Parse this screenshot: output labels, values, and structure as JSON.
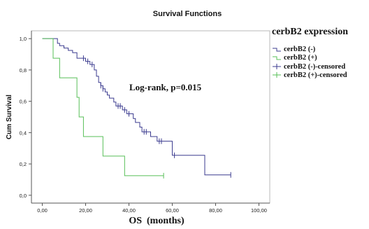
{
  "chart_data": {
    "type": "line",
    "step": true,
    "title": "Survival Functions",
    "xlabel": "OS  (months)",
    "ylabel": "Cum Survival",
    "xlim": [
      -5,
      105
    ],
    "ylim": [
      -0.05,
      1.05
    ],
    "x_ticks": [
      0,
      20,
      40,
      60,
      80,
      100
    ],
    "x_tick_labels": [
      "0,00",
      "20,00",
      "40,00",
      "60,00",
      "80,00",
      "100,00"
    ],
    "y_ticks": [
      0,
      0.2,
      0.4,
      0.6,
      0.8,
      1.0
    ],
    "y_tick_labels": [
      "0,0",
      "0,2",
      "0,4",
      "0,6",
      "0,8",
      "1,0"
    ],
    "grid": false,
    "legend_title": "cerbB2 expression",
    "legend_position": "right",
    "annotation": "Log-rank, p=0.015",
    "series": [
      {
        "name": "cerbB2 (-)",
        "censored_name": "cerbB2 (-)-censored",
        "color": "#3b3b8f",
        "steps": [
          [
            0,
            1.0
          ],
          [
            7,
            0.97
          ],
          [
            8,
            0.955
          ],
          [
            10,
            0.94
          ],
          [
            12,
            0.925
          ],
          [
            14,
            0.91
          ],
          [
            16,
            0.875
          ],
          [
            20,
            0.855
          ],
          [
            22,
            0.835
          ],
          [
            24,
            0.8
          ],
          [
            25,
            0.76
          ],
          [
            26,
            0.72
          ],
          [
            27,
            0.7
          ],
          [
            28,
            0.68
          ],
          [
            29,
            0.66
          ],
          [
            30,
            0.64
          ],
          [
            31,
            0.62
          ],
          [
            33,
            0.595
          ],
          [
            34,
            0.57
          ],
          [
            37,
            0.545
          ],
          [
            39,
            0.52
          ],
          [
            42,
            0.49
          ],
          [
            43,
            0.465
          ],
          [
            45,
            0.435
          ],
          [
            46,
            0.405
          ],
          [
            50,
            0.375
          ],
          [
            53,
            0.345
          ],
          [
            60,
            0.255
          ],
          [
            75,
            0.13
          ]
        ],
        "end_x": 87,
        "censored": [
          [
            19,
            0.875
          ],
          [
            21,
            0.855
          ],
          [
            23,
            0.835
          ],
          [
            27,
            0.7
          ],
          [
            28,
            0.68
          ],
          [
            35,
            0.57
          ],
          [
            36,
            0.57
          ],
          [
            38,
            0.545
          ],
          [
            40,
            0.52
          ],
          [
            47,
            0.405
          ],
          [
            48,
            0.405
          ],
          [
            54,
            0.345
          ],
          [
            55,
            0.345
          ],
          [
            61,
            0.255
          ],
          [
            87,
            0.13
          ]
        ]
      },
      {
        "name": "cerbB2 (+)",
        "censored_name": "cerbB2 (+)-censored",
        "color": "#57bf57",
        "steps": [
          [
            0,
            1.0
          ],
          [
            5,
            0.875
          ],
          [
            8,
            0.75
          ],
          [
            16,
            0.625
          ],
          [
            17,
            0.5
          ],
          [
            19,
            0.375
          ],
          [
            28,
            0.25
          ],
          [
            38,
            0.125
          ]
        ],
        "end_x": 56,
        "censored": [
          [
            56,
            0.125
          ]
        ]
      }
    ]
  }
}
